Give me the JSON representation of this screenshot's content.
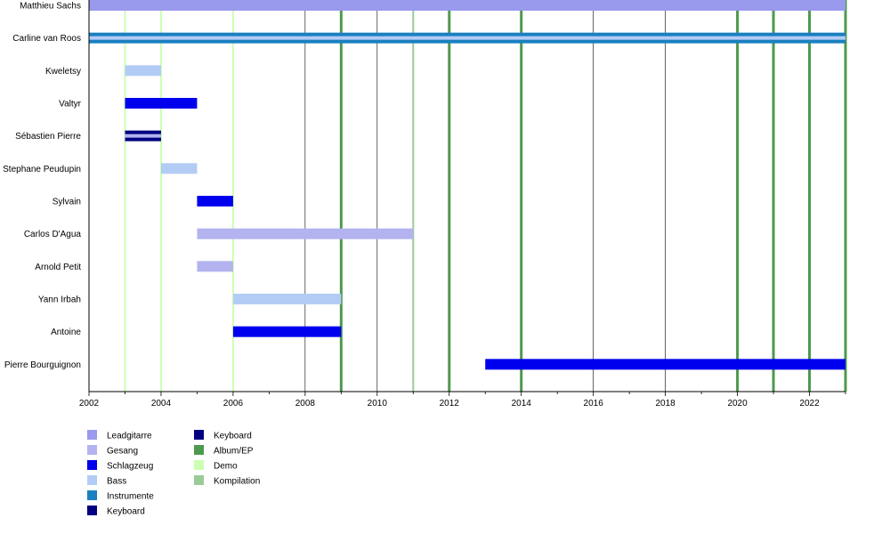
{
  "chart_data": {
    "type": "timeline",
    "title": "",
    "xlabel": "",
    "ylabel": "",
    "xlim": [
      2002,
      2023
    ],
    "x_ticks": [
      "2002",
      "2004",
      "2006",
      "2008",
      "2010",
      "2012",
      "2014",
      "2016",
      "2018",
      "2020",
      "2022"
    ],
    "minor_gridlines_every_years": 2,
    "members": [
      "Matthieu Sachs",
      "Carline van Roos",
      "Kweletsy",
      "Valtyr",
      "Sébastien Pierre",
      "Stephane Peudupin",
      "Sylvain",
      "Carlos D'Agua",
      "Arnold Petit",
      "Yann Irbah",
      "Antoine",
      "Pierre Bourguignon"
    ],
    "roles": [
      {
        "key": "lead",
        "name": "Leadgitarre",
        "color": "#9999ee"
      },
      {
        "key": "vocals",
        "name": "Gesang",
        "color": "#b3b3f0"
      },
      {
        "key": "drums",
        "name": "Schlagzeug",
        "color": "#0000ee"
      },
      {
        "key": "bass",
        "name": "Bass",
        "color": "#b3ccf5"
      },
      {
        "key": "instr",
        "name": "Instrumente",
        "color": "#1a80c0"
      },
      {
        "key": "keys",
        "name": "Keyboard",
        "color": "#000080"
      }
    ],
    "releases": [
      {
        "key": "album",
        "name": "Album/EP",
        "color": "#4d994d"
      },
      {
        "key": "demo",
        "name": "Demo",
        "color": "#ccffb3"
      },
      {
        "key": "comp",
        "name": "Kompilation",
        "color": "#99cc99"
      }
    ],
    "bars": [
      {
        "member": "Matthieu Sachs",
        "role": "lead",
        "start": 2002,
        "end": 2023
      },
      {
        "member": "Carline van Roos",
        "role": "instr",
        "start": 2002,
        "end": 2023
      },
      {
        "member": "Carline van Roos",
        "role": "bass",
        "start": 2002,
        "end": 2023,
        "overlay": true
      },
      {
        "member": "Kweletsy",
        "role": "bass",
        "start": 2003,
        "end": 2004
      },
      {
        "member": "Valtyr",
        "role": "drums",
        "start": 2003,
        "end": 2005
      },
      {
        "member": "Sébastien Pierre",
        "role": "keys",
        "start": 2003,
        "end": 2004
      },
      {
        "member": "Sébastien Pierre",
        "role": "vocals",
        "start": 2003,
        "end": 2004,
        "overlay": true
      },
      {
        "member": "Stephane Peudupin",
        "role": "bass",
        "start": 2004,
        "end": 2005
      },
      {
        "member": "Sylvain",
        "role": "drums",
        "start": 2005,
        "end": 2006
      },
      {
        "member": "Carlos D'Agua",
        "role": "vocals",
        "start": 2005,
        "end": 2011
      },
      {
        "member": "Arnold Petit",
        "role": "vocals",
        "start": 2005,
        "end": 2006
      },
      {
        "member": "Yann Irbah",
        "role": "bass",
        "start": 2006,
        "end": 2009
      },
      {
        "member": "Antoine",
        "role": "drums",
        "start": 2006,
        "end": 2009
      },
      {
        "member": "Pierre Bourguignon",
        "role": "drums",
        "start": 2013,
        "end": 2023
      }
    ],
    "events": [
      {
        "year": 2003,
        "type": "demo"
      },
      {
        "year": 2004,
        "type": "demo"
      },
      {
        "year": 2006,
        "type": "demo"
      },
      {
        "year": 2009,
        "type": "album"
      },
      {
        "year": 2011,
        "type": "comp"
      },
      {
        "year": 2012,
        "type": "album"
      },
      {
        "year": 2014,
        "type": "album"
      },
      {
        "year": 2020,
        "type": "album"
      },
      {
        "year": 2021,
        "type": "album"
      },
      {
        "year": 2022,
        "type": "album"
      },
      {
        "year": 2023,
        "type": "album"
      }
    ]
  }
}
